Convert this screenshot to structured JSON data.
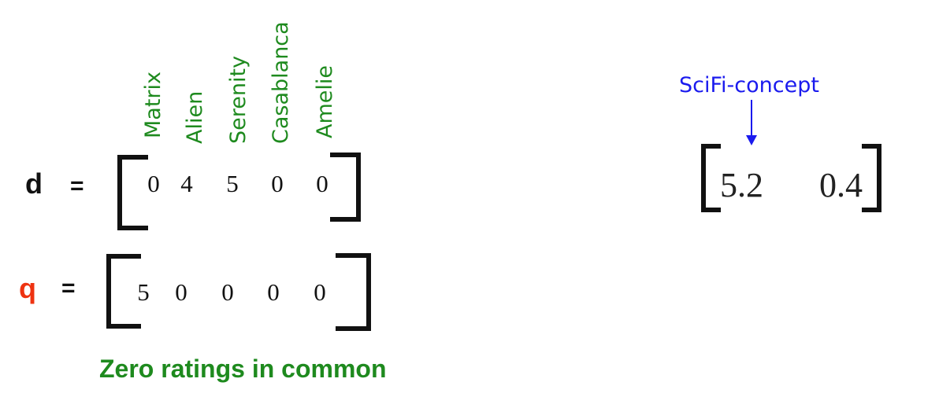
{
  "movies": [
    "Matrix",
    "Alien",
    "Serenity",
    "Casablanca",
    "Amelie"
  ],
  "d_vector": {
    "name": "d",
    "equals": "=",
    "values": [
      "0",
      "4",
      "5",
      "0",
      "0"
    ]
  },
  "q_vector": {
    "name": "q",
    "equals": "=",
    "values": [
      "5",
      "0",
      "0",
      "0",
      "0"
    ]
  },
  "caption": "Zero ratings in common",
  "concept_vector": {
    "label": "SciFi-concept",
    "values": [
      "5.2",
      "0.4"
    ]
  },
  "colors": {
    "movie_labels": "#1e8a1e",
    "caption": "#1e8a1e",
    "q_name": "#ee3311",
    "concept_label": "#1a1aee",
    "arrow": "#1a1aee",
    "brackets": "#111111"
  }
}
